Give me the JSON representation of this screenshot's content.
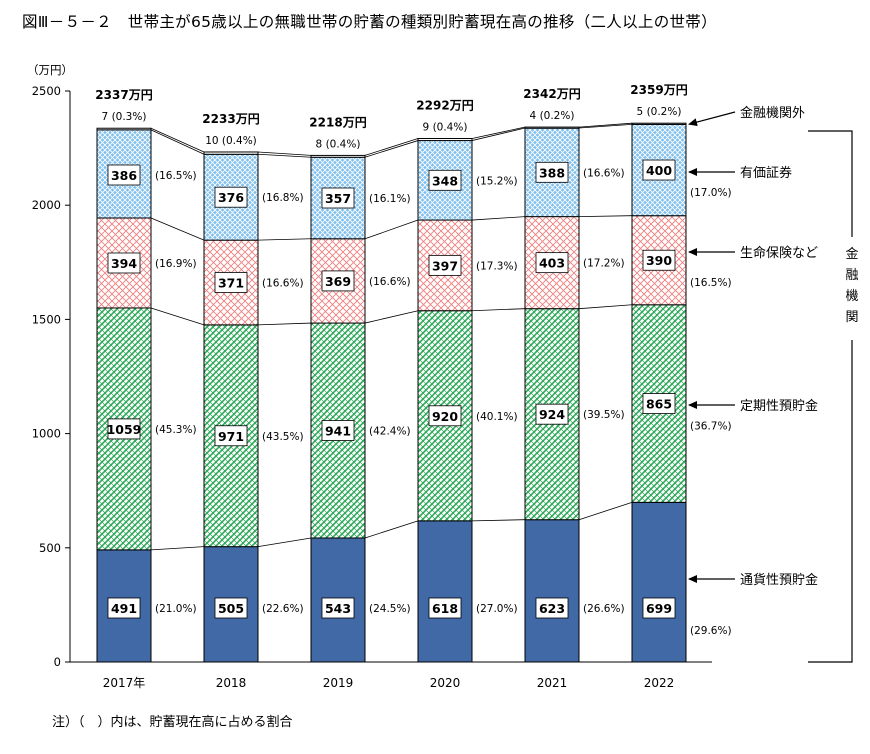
{
  "page": {
    "title": "図Ⅲ－５－２　世帯主が65歳以上の無職世帯の貯蓄の種類別貯蓄現在高の推移（二人以上の世帯）",
    "note": "注）（　）内は、貯蓄現在高に占める割合"
  },
  "chart_data": {
    "type": "bar",
    "stacked": true,
    "title": "図Ⅲ－５－２　世帯主が65歳以上の無職世帯の貯蓄の種類別貯蓄現在高の推移（二人以上の世帯）",
    "ylabel": "（万円）",
    "xlabel": "",
    "ylim": [
      0,
      2500
    ],
    "yticks": [
      0,
      500,
      1000,
      1500,
      2000,
      2500
    ],
    "categories": [
      "2017年",
      "2018",
      "2019",
      "2020",
      "2021",
      "2022"
    ],
    "totals": [
      "2337万円",
      "2233万円",
      "2218万円",
      "2292万円",
      "2342万円",
      "2359万円"
    ],
    "series": [
      {
        "name": "通貨性預貯金",
        "values": [
          491,
          505,
          543,
          618,
          623,
          699
        ],
        "shares": [
          "(21.0%)",
          "(22.6%)",
          "(24.5%)",
          "(27.0%)",
          "(26.6%)",
          "(29.6%)"
        ],
        "color": "#4169a5"
      },
      {
        "name": "定期性預貯金",
        "values": [
          1059,
          971,
          941,
          920,
          924,
          865
        ],
        "shares": [
          "(45.3%)",
          "(43.5%)",
          "(42.4%)",
          "(40.1%)",
          "(39.5%)",
          "(36.7%)"
        ],
        "color": "#3cb371"
      },
      {
        "name": "生命保険など",
        "values": [
          394,
          371,
          369,
          397,
          403,
          390
        ],
        "shares": [
          "(16.9%)",
          "(16.6%)",
          "(16.6%)",
          "(17.3%)",
          "(17.2%)",
          "(16.5%)"
        ],
        "color": "#f08a8a"
      },
      {
        "name": "有価証券",
        "values": [
          386,
          376,
          357,
          348,
          388,
          400
        ],
        "shares": [
          "(16.5%)",
          "(16.8%)",
          "(16.1%)",
          "(15.2%)",
          "(16.6%)",
          "(17.0%)"
        ],
        "color": "#6aaee0"
      },
      {
        "name": "金融機関外",
        "values": [
          7,
          10,
          8,
          9,
          4,
          5
        ],
        "shares": [
          "(0.3%)",
          "(0.4%)",
          "(0.4%)",
          "(0.4%)",
          "(0.2%)",
          "(0.2%)"
        ],
        "color": "#ffffff"
      }
    ],
    "bracket_label": "金融機関",
    "grid": false,
    "legend": "right"
  }
}
